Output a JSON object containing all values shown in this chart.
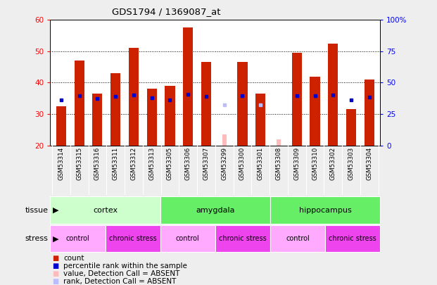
{
  "title": "GDS1794 / 1369087_at",
  "samples": [
    "GSM53314",
    "GSM53315",
    "GSM53316",
    "GSM53311",
    "GSM53312",
    "GSM53313",
    "GSM53305",
    "GSM53306",
    "GSM53307",
    "GSM53299",
    "GSM53300",
    "GSM53301",
    "GSM53308",
    "GSM53309",
    "GSM53310",
    "GSM53302",
    "GSM53303",
    "GSM53304"
  ],
  "count_values": [
    32.5,
    47.0,
    36.5,
    43.0,
    51.0,
    38.0,
    39.0,
    57.5,
    46.5,
    null,
    46.5,
    36.5,
    null,
    49.5,
    42.0,
    52.5,
    31.5,
    41.0
  ],
  "rank_values": [
    36.5,
    39.5,
    37.5,
    39.0,
    40.0,
    38.0,
    36.5,
    40.5,
    39.0,
    null,
    39.5,
    null,
    null,
    39.5,
    39.5,
    40.0,
    36.0,
    38.5
  ],
  "absent_count_values": [
    null,
    null,
    null,
    null,
    null,
    null,
    null,
    null,
    null,
    23.5,
    null,
    null,
    22.0,
    null,
    null,
    null,
    null,
    null
  ],
  "absent_rank_values": [
    null,
    null,
    null,
    null,
    null,
    null,
    null,
    null,
    null,
    32.5,
    null,
    32.5,
    null,
    null,
    null,
    null,
    null,
    null
  ],
  "ylim_left": [
    20,
    60
  ],
  "ylim_right": [
    0,
    100
  ],
  "yticks_left": [
    20,
    30,
    40,
    50,
    60
  ],
  "yticks_right": [
    0,
    25,
    50,
    75,
    100
  ],
  "ytick_labels_right": [
    "0",
    "25",
    "50",
    "75",
    "100%"
  ],
  "tissue_groups": [
    {
      "label": "cortex",
      "start": 0,
      "end": 6,
      "color": "#ccffcc"
    },
    {
      "label": "amygdala",
      "start": 6,
      "end": 12,
      "color": "#66ee66"
    },
    {
      "label": "hippocampus",
      "start": 12,
      "end": 18,
      "color": "#66ee66"
    }
  ],
  "stress_groups": [
    {
      "label": "control",
      "start": 0,
      "end": 3,
      "color": "#ffaaff"
    },
    {
      "label": "chronic stress",
      "start": 3,
      "end": 6,
      "color": "#ee44ee"
    },
    {
      "label": "control",
      "start": 6,
      "end": 9,
      "color": "#ffaaff"
    },
    {
      "label": "chronic stress",
      "start": 9,
      "end": 12,
      "color": "#ee44ee"
    },
    {
      "label": "control",
      "start": 12,
      "end": 15,
      "color": "#ffaaff"
    },
    {
      "label": "chronic stress",
      "start": 15,
      "end": 18,
      "color": "#ee44ee"
    }
  ],
  "bar_color_count": "#cc2200",
  "bar_color_rank": "#0000cc",
  "bar_color_absent_count": "#ffbbbb",
  "bar_color_absent_rank": "#bbbbff",
  "bar_width": 0.55,
  "absent_bar_width": 0.22,
  "background_color": "#eeeeee",
  "plot_bg_color": "white",
  "xticklabel_bg": "#cccccc"
}
